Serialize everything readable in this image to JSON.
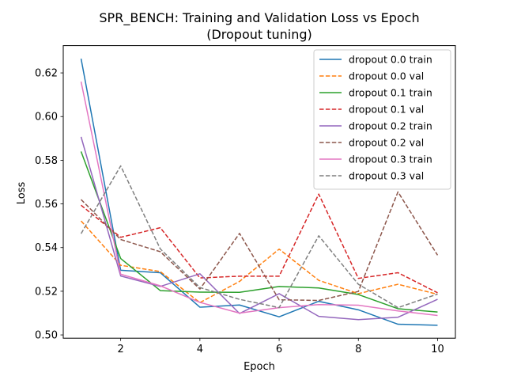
{
  "chart_data": {
    "type": "line",
    "title": "SPR_BENCH: Training and Validation Loss vs Epoch",
    "subtitle": "(Dropout tuning)",
    "xlabel": "Epoch",
    "ylabel": "Loss",
    "xlim": [
      0.55,
      10.45
    ],
    "ylim": [
      0.4985,
      0.6325
    ],
    "xticks": [
      2,
      4,
      6,
      8,
      10
    ],
    "yticks": [
      0.5,
      0.52,
      0.54,
      0.56,
      0.58,
      0.6,
      0.62
    ],
    "ytick_labels": [
      "0.50",
      "0.52",
      "0.54",
      "0.56",
      "0.58",
      "0.60",
      "0.62"
    ],
    "grid": false,
    "legend_position": "top-right",
    "x": [
      1,
      2,
      3,
      4,
      5,
      6,
      7,
      8,
      9,
      10
    ],
    "series": [
      {
        "name": "dropout 0.0 train",
        "color": "#1f77b4",
        "style": "solid",
        "values": [
          0.6265,
          0.5296,
          0.5285,
          0.5127,
          0.5137,
          0.5083,
          0.5154,
          0.5115,
          0.5049,
          0.5044
        ]
      },
      {
        "name": "dropout 0.0 val",
        "color": "#ff7f0e",
        "style": "dashed",
        "values": [
          0.5522,
          0.5319,
          0.529,
          0.5148,
          0.5245,
          0.5393,
          0.525,
          0.5189,
          0.5232,
          0.5186
        ]
      },
      {
        "name": "dropout 0.1 train",
        "color": "#2ca02c",
        "style": "solid",
        "values": [
          0.584,
          0.535,
          0.5203,
          0.5196,
          0.5195,
          0.5222,
          0.5215,
          0.5185,
          0.512,
          0.5105
        ]
      },
      {
        "name": "dropout 0.1 val",
        "color": "#d62728",
        "style": "dashed",
        "values": [
          0.5594,
          0.5447,
          0.5491,
          0.5261,
          0.5269,
          0.5269,
          0.5645,
          0.5259,
          0.5285,
          0.5193
        ]
      },
      {
        "name": "dropout 0.2 train",
        "color": "#9467bd",
        "style": "solid",
        "values": [
          0.5907,
          0.527,
          0.5222,
          0.528,
          0.5098,
          0.5189,
          0.5085,
          0.507,
          0.5081,
          0.5163
        ]
      },
      {
        "name": "dropout 0.2 val",
        "color": "#8c564b",
        "style": "dashed",
        "values": [
          0.562,
          0.5437,
          0.5381,
          0.521,
          0.5465,
          0.5161,
          0.5158,
          0.5199,
          0.5655,
          0.5365
        ]
      },
      {
        "name": "dropout 0.3 train",
        "color": "#e377c2",
        "style": "solid",
        "values": [
          0.616,
          0.5278,
          0.5225,
          0.5149,
          0.51,
          0.5125,
          0.5139,
          0.5136,
          0.511,
          0.5089
        ]
      },
      {
        "name": "dropout 0.3 val",
        "color": "#7f7f7f",
        "style": "dashed",
        "values": [
          0.5464,
          0.5774,
          0.5394,
          0.5217,
          0.5163,
          0.5125,
          0.5454,
          0.5232,
          0.5125,
          0.5187
        ]
      }
    ]
  }
}
